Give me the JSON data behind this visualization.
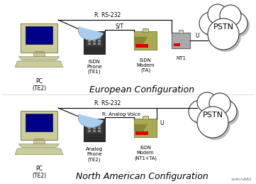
{
  "background": "#ffffff",
  "fig_width": 3.61,
  "fig_height": 2.59,
  "dpi": 100,
  "top": {
    "label": "European Configuration",
    "pc_label": "PC\n(TE2)",
    "phone_label": "ISDN\nPhone\n(TE1)",
    "modem_label": "ISDN\nModem\n(TA)",
    "nt1_label": "NT1",
    "cloud_label": "PSTN",
    "rs232_label": "R: RS-232",
    "st_label": "S/T",
    "u_label": "U"
  },
  "bottom": {
    "label": "North American Configuration",
    "pc_label": "PC\n(TE2)",
    "phone_label": "Analog\nPhone\n(TE2)",
    "modem_label": "ISDN\nModem\n(NT1+TA)",
    "cloud_label": "PSTN",
    "rs232_label": "R: RS-232",
    "analog_label": "R: Analog Voice",
    "u_label": "U"
  },
  "watermark": "isdn/wh62"
}
